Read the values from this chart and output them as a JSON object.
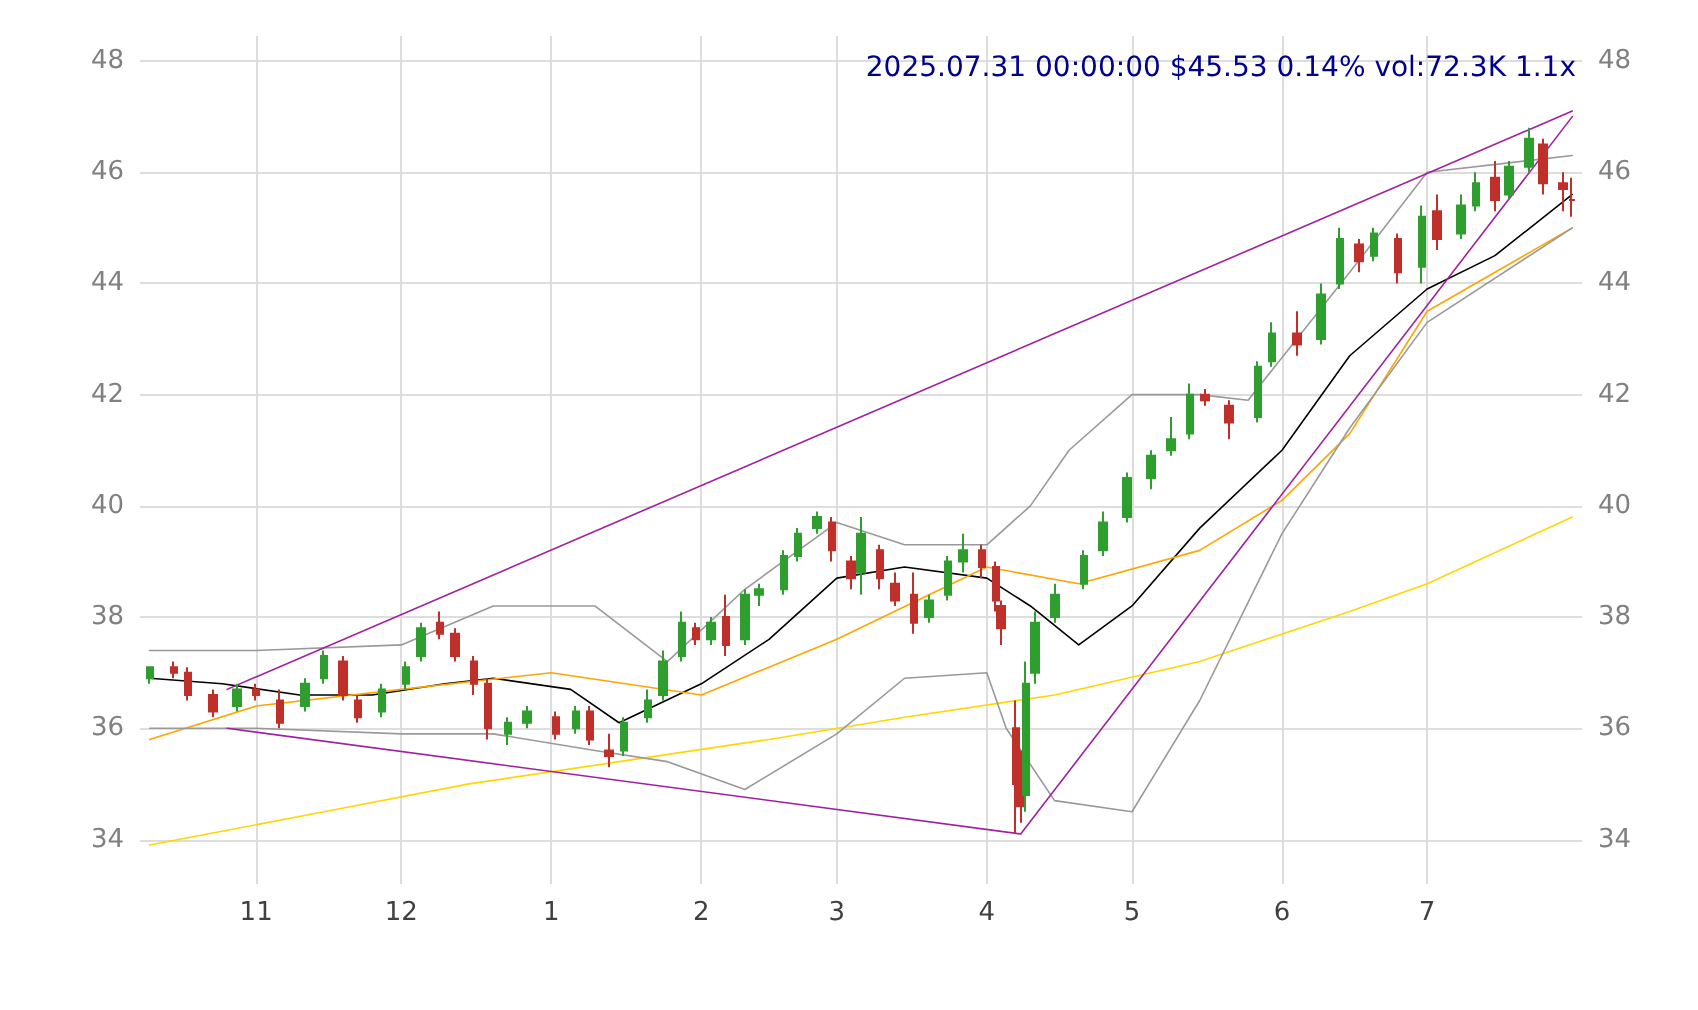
{
  "chart_data": {
    "type": "candlestick",
    "title": "2025.07.31 00:00:00 $45.53 0.14% vol:72.3K 1.1x",
    "x": [
      "2024-10-10",
      "2024-10-15",
      "2024-10-18",
      "2024-10-23",
      "2024-10-28",
      "2024-11-01",
      "2024-11-06",
      "2024-11-11",
      "2024-11-15",
      "2024-11-19",
      "2024-11-22",
      "2024-11-27",
      "2024-12-02",
      "2024-12-05",
      "2024-12-09",
      "2024-12-12",
      "2024-12-16",
      "2024-12-19",
      "2024-12-23",
      "2024-12-27",
      "2025-01-02",
      "2025-01-06",
      "2025-01-09",
      "2025-01-13",
      "2025-01-16",
      "2025-01-21",
      "2025-01-24",
      "2025-01-28",
      "2025-01-31",
      "2025-02-03",
      "2025-02-06",
      "2025-02-10",
      "2025-02-13",
      "2025-02-18",
      "2025-02-21",
      "2025-02-25",
      "2025-02-28",
      "2025-03-04",
      "2025-03-06",
      "2025-03-10",
      "2025-03-13",
      "2025-03-17",
      "2025-03-20",
      "2025-03-24",
      "2025-03-27",
      "2025-03-31",
      "2025-04-03",
      "2025-04-04",
      "2025-04-07",
      "2025-04-08",
      "2025-04-09",
      "2025-04-11",
      "2025-04-15",
      "2025-04-21",
      "2025-04-25",
      "2025-04-30",
      "2025-05-05",
      "2025-05-09",
      "2025-05-13",
      "2025-05-16",
      "2025-05-21",
      "2025-05-27",
      "2025-05-30",
      "2025-06-04",
      "2025-06-09",
      "2025-06-13",
      "2025-06-17",
      "2025-06-20",
      "2025-06-25",
      "2025-06-30",
      "2025-07-03",
      "2025-07-08",
      "2025-07-11",
      "2025-07-15",
      "2025-07-18",
      "2025-07-22",
      "2025-07-25",
      "2025-07-29",
      "2025-07-31"
    ],
    "ohlc": [
      [
        36.9,
        37.1,
        36.8,
        37.1
      ],
      [
        37.1,
        37.2,
        36.9,
        37.0
      ],
      [
        37.0,
        37.1,
        36.5,
        36.6
      ],
      [
        36.6,
        36.7,
        36.2,
        36.3
      ],
      [
        36.4,
        36.8,
        36.3,
        36.7
      ],
      [
        36.7,
        36.8,
        36.5,
        36.6
      ],
      [
        36.5,
        36.7,
        36.0,
        36.1
      ],
      [
        36.4,
        36.9,
        36.3,
        36.8
      ],
      [
        36.9,
        37.4,
        36.8,
        37.3
      ],
      [
        37.2,
        37.3,
        36.5,
        36.6
      ],
      [
        36.5,
        36.6,
        36.1,
        36.2
      ],
      [
        36.3,
        36.8,
        36.2,
        36.7
      ],
      [
        36.8,
        37.2,
        36.7,
        37.1
      ],
      [
        37.3,
        37.9,
        37.2,
        37.8
      ],
      [
        37.9,
        38.1,
        37.6,
        37.7
      ],
      [
        37.7,
        37.8,
        37.2,
        37.3
      ],
      [
        37.2,
        37.3,
        36.6,
        36.8
      ],
      [
        36.8,
        36.9,
        35.8,
        36.0
      ],
      [
        35.9,
        36.2,
        35.7,
        36.1
      ],
      [
        36.1,
        36.4,
        36.0,
        36.3
      ],
      [
        36.2,
        36.3,
        35.8,
        35.9
      ],
      [
        36.0,
        36.4,
        35.9,
        36.3
      ],
      [
        36.3,
        36.4,
        35.7,
        35.8
      ],
      [
        35.6,
        35.9,
        35.3,
        35.5
      ],
      [
        35.6,
        36.2,
        35.5,
        36.1
      ],
      [
        36.2,
        36.7,
        36.1,
        36.5
      ],
      [
        36.6,
        37.4,
        36.5,
        37.2
      ],
      [
        37.3,
        38.1,
        37.2,
        37.9
      ],
      [
        37.8,
        37.9,
        37.5,
        37.6
      ],
      [
        37.6,
        38.0,
        37.5,
        37.9
      ],
      [
        38.0,
        38.4,
        37.3,
        37.5
      ],
      [
        37.6,
        38.5,
        37.5,
        38.4
      ],
      [
        38.4,
        38.6,
        38.2,
        38.5
      ],
      [
        38.5,
        39.2,
        38.4,
        39.1
      ],
      [
        39.1,
        39.6,
        39.0,
        39.5
      ],
      [
        39.6,
        39.9,
        39.5,
        39.8
      ],
      [
        39.7,
        39.8,
        39.0,
        39.2
      ],
      [
        39.0,
        39.1,
        38.5,
        38.7
      ],
      [
        38.8,
        39.8,
        38.4,
        39.5
      ],
      [
        39.2,
        39.3,
        38.5,
        38.7
      ],
      [
        38.6,
        38.8,
        38.2,
        38.3
      ],
      [
        38.4,
        38.8,
        37.7,
        37.9
      ],
      [
        38.0,
        38.4,
        37.9,
        38.3
      ],
      [
        38.4,
        39.1,
        38.3,
        39.0
      ],
      [
        39.0,
        39.5,
        38.8,
        39.2
      ],
      [
        39.2,
        39.3,
        38.7,
        38.9
      ],
      [
        38.9,
        39.0,
        38.1,
        38.3
      ],
      [
        38.2,
        38.3,
        37.5,
        37.8
      ],
      [
        36.0,
        36.5,
        34.1,
        35.0
      ],
      [
        35.2,
        35.6,
        34.3,
        34.6
      ],
      [
        34.8,
        37.2,
        34.5,
        36.8
      ],
      [
        37.0,
        38.1,
        36.8,
        37.9
      ],
      [
        38.0,
        38.6,
        37.9,
        38.4
      ],
      [
        38.6,
        39.2,
        38.5,
        39.1
      ],
      [
        39.2,
        39.9,
        39.1,
        39.7
      ],
      [
        39.8,
        40.6,
        39.7,
        40.5
      ],
      [
        40.5,
        41.0,
        40.3,
        40.9
      ],
      [
        41.0,
        41.6,
        40.9,
        41.2
      ],
      [
        41.3,
        42.2,
        41.2,
        42.0
      ],
      [
        42.0,
        42.1,
        41.8,
        41.9
      ],
      [
        41.8,
        41.9,
        41.2,
        41.5
      ],
      [
        41.6,
        42.6,
        41.5,
        42.5
      ],
      [
        42.6,
        43.3,
        42.5,
        43.1
      ],
      [
        43.1,
        43.5,
        42.7,
        42.9
      ],
      [
        43.0,
        44.0,
        42.9,
        43.8
      ],
      [
        44.0,
        45.0,
        43.9,
        44.8
      ],
      [
        44.7,
        44.8,
        44.2,
        44.4
      ],
      [
        44.5,
        45.0,
        44.4,
        44.9
      ],
      [
        44.8,
        44.9,
        44.0,
        44.2
      ],
      [
        44.3,
        45.4,
        44.0,
        45.2
      ],
      [
        45.3,
        45.6,
        44.6,
        44.8
      ],
      [
        44.9,
        45.6,
        44.8,
        45.4
      ],
      [
        45.4,
        46.0,
        45.3,
        45.8
      ],
      [
        45.9,
        46.2,
        45.3,
        45.5
      ],
      [
        45.6,
        46.2,
        45.5,
        46.1
      ],
      [
        46.1,
        46.8,
        46.0,
        46.6
      ],
      [
        46.5,
        46.6,
        45.6,
        45.8
      ],
      [
        45.8,
        46.0,
        45.3,
        45.7
      ],
      [
        45.5,
        45.9,
        45.2,
        45.5
      ]
    ],
    "series": [
      {
        "type": "line",
        "color": "#000000",
        "x": [
          "2024-10-10",
          "2024-10-25",
          "2024-11-10",
          "2024-11-25",
          "2024-12-10",
          "2024-12-20",
          "2025-01-05",
          "2025-01-15",
          "2025-02-01",
          "2025-02-15",
          "2025-03-01",
          "2025-03-15",
          "2025-04-01",
          "2025-04-10",
          "2025-04-20",
          "2025-05-01",
          "2025-05-15",
          "2025-06-01",
          "2025-06-15",
          "2025-07-01",
          "2025-07-15",
          "2025-07-31"
        ],
        "values": [
          36.9,
          36.8,
          36.6,
          36.6,
          36.8,
          36.9,
          36.7,
          36.1,
          36.8,
          37.6,
          38.7,
          38.9,
          38.7,
          38.2,
          37.5,
          38.2,
          39.6,
          41.0,
          42.7,
          43.9,
          44.5,
          45.6
        ]
      },
      {
        "type": "line",
        "color": "#ffa500",
        "x": [
          "2024-10-10",
          "2024-11-01",
          "2024-12-01",
          "2025-01-01",
          "2025-02-01",
          "2025-03-01",
          "2025-04-01",
          "2025-04-20",
          "2025-05-15",
          "2025-06-01",
          "2025-06-15",
          "2025-07-01",
          "2025-07-31"
        ],
        "values": [
          35.8,
          36.4,
          36.7,
          37.0,
          36.6,
          37.6,
          38.9,
          38.6,
          39.2,
          40.1,
          41.3,
          43.5,
          45.0
        ]
      },
      {
        "type": "line",
        "color": "#ffd700",
        "x": [
          "2024-10-10",
          "2024-11-15",
          "2024-12-15",
          "2025-01-15",
          "2025-02-15",
          "2025-03-15",
          "2025-04-15",
          "2025-05-15",
          "2025-06-15",
          "2025-07-01",
          "2025-07-31"
        ],
        "values": [
          33.9,
          34.5,
          35.0,
          35.4,
          35.8,
          36.2,
          36.6,
          37.2,
          38.1,
          38.6,
          39.8
        ]
      },
      {
        "type": "line",
        "color": "#999999",
        "x": [
          "2024-10-10",
          "2024-11-01",
          "2024-12-01",
          "2024-12-20",
          "2025-01-10",
          "2025-01-25",
          "2025-02-10",
          "2025-03-01",
          "2025-03-15",
          "2025-04-01",
          "2025-04-10",
          "2025-04-18",
          "2025-05-01",
          "2025-05-15",
          "2025-05-25",
          "2025-06-15",
          "2025-07-01",
          "2025-07-31"
        ],
        "values": [
          37.4,
          37.4,
          37.5,
          38.2,
          38.2,
          37.2,
          38.5,
          39.7,
          39.3,
          39.3,
          40.0,
          41.0,
          42.0,
          42.0,
          41.9,
          44.2,
          46.0,
          46.3
        ]
      },
      {
        "type": "line",
        "color": "#999999",
        "x": [
          "2024-10-10",
          "2024-11-01",
          "2024-12-01",
          "2024-12-20",
          "2025-01-10",
          "2025-01-25",
          "2025-02-10",
          "2025-03-01",
          "2025-03-15",
          "2025-04-01",
          "2025-04-05",
          "2025-04-15",
          "2025-05-01",
          "2025-05-15",
          "2025-06-01",
          "2025-06-15",
          "2025-07-01",
          "2025-07-31"
        ],
        "values": [
          36.0,
          36.0,
          35.9,
          35.9,
          35.6,
          35.4,
          34.9,
          35.9,
          36.9,
          37.0,
          36.0,
          34.7,
          34.5,
          36.5,
          39.5,
          41.4,
          43.3,
          45.0
        ]
      },
      {
        "type": "line",
        "color": "#a020a0",
        "x": [
          "2024-10-26",
          "2025-07-31"
        ],
        "values": [
          36.7,
          47.1
        ]
      },
      {
        "type": "line",
        "color": "#a020a0",
        "x": [
          "2024-10-26",
          "2025-04-08",
          "2025-07-31"
        ],
        "values": [
          36.0,
          34.1,
          47.0
        ]
      }
    ],
    "xlim": [
      "2024-10-08",
      "2025-08-02"
    ],
    "xticks": [
      {
        "value": "2024-11-01",
        "label": "11"
      },
      {
        "value": "2024-12-01",
        "label": "12"
      },
      {
        "value": "2025-01-01",
        "label": "1"
      },
      {
        "value": "2025-02-01",
        "label": "2"
      },
      {
        "value": "2025-03-01",
        "label": "3"
      },
      {
        "value": "2025-04-01",
        "label": "4"
      },
      {
        "value": "2025-05-01",
        "label": "5"
      },
      {
        "value": "2025-06-01",
        "label": "6"
      },
      {
        "value": "2025-07-01",
        "label": "7"
      }
    ],
    "ylim": [
      33.2,
      48.45
    ],
    "yticks": [
      34,
      36,
      38,
      40,
      42,
      44,
      46,
      48
    ],
    "y2lim": [
      33.2,
      48.45
    ],
    "y2ticks": [
      34,
      36,
      38,
      40,
      42,
      44,
      46,
      48
    ],
    "grid": true
  }
}
